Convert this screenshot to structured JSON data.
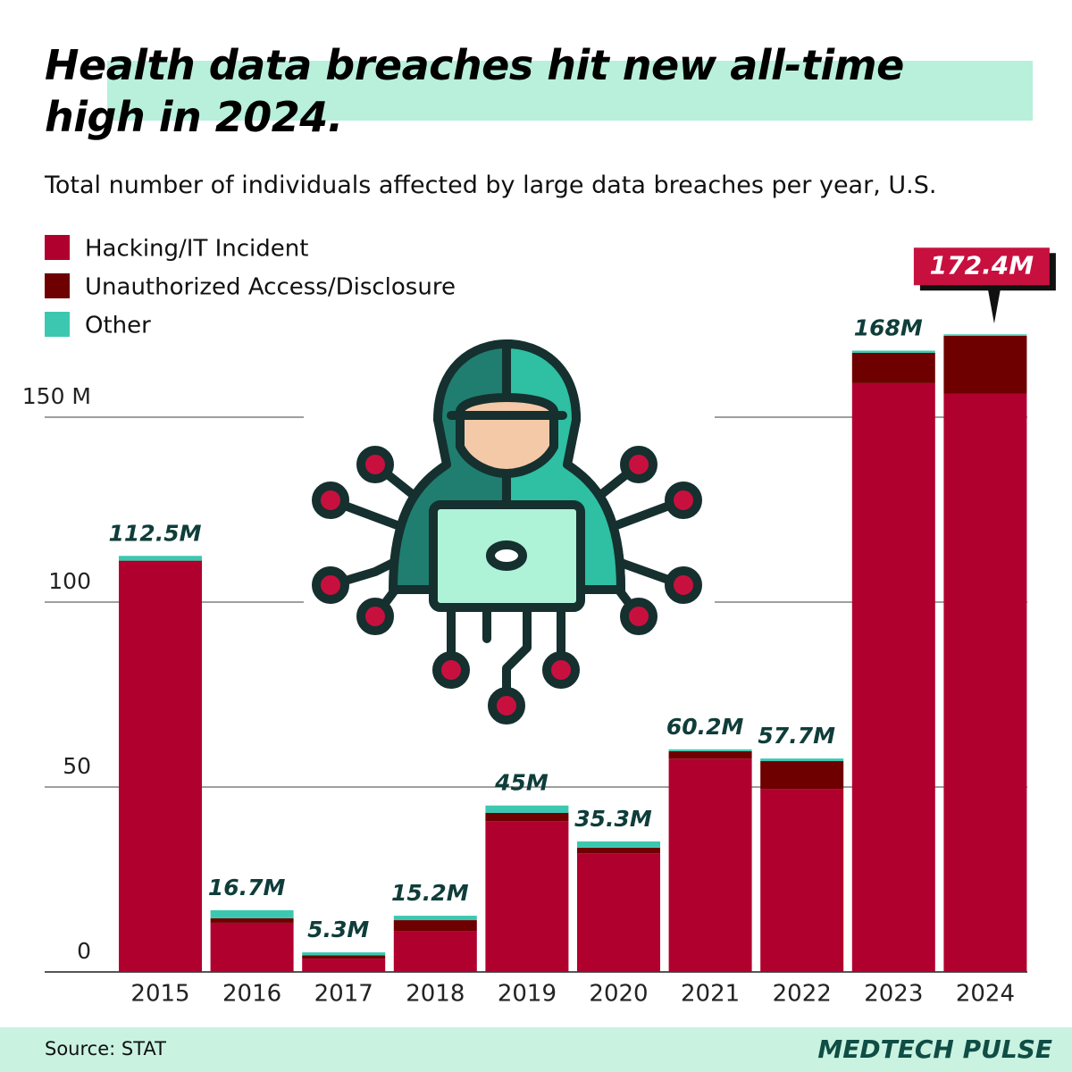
{
  "chart_data": {
    "type": "stacked_bar",
    "title": "Health data breaches hit new all-time high in 2024.",
    "subtitle": "Total number of individuals affected by large data breaches per year, U.S.",
    "categories": [
      "2015",
      "2016",
      "2017",
      "2018",
      "2019",
      "2020",
      "2021",
      "2022",
      "2023",
      "2024"
    ],
    "series": [
      {
        "name": "Hacking/IT Incident",
        "color": "#b0002e",
        "values": [
          110.9,
          13.3,
          3.6,
          11.1,
          40.8,
          32.1,
          57.7,
          49.5,
          159.2,
          156.3
        ]
      },
      {
        "name": "Unauthorized Access/Disclosure",
        "color": "#6e0000",
        "values": [
          0.3,
          1.2,
          0.9,
          2.9,
          2.2,
          1.5,
          2.0,
          7.5,
          8.2,
          15.7
        ]
      },
      {
        "name": "Other",
        "color": "#3cc8b0",
        "values": [
          1.3,
          2.2,
          0.8,
          1.2,
          2.0,
          1.7,
          0.5,
          0.7,
          0.6,
          0.4
        ]
      }
    ],
    "totals": {
      "values": [
        112.5,
        16.7,
        5.3,
        15.2,
        45,
        35.3,
        60.2,
        57.7,
        168,
        172.4
      ],
      "value_labels": [
        "112.5M",
        "16.7M",
        "5.3M",
        "15.2M",
        "45M",
        "35.3M",
        "60.2M",
        "57.7M",
        "168M",
        "172.4M"
      ],
      "highlight_color": "#c8103f"
    },
    "ylim": [
      0,
      180
    ],
    "yticks": [
      0,
      50,
      100,
      {
        "value": 150,
        "label": "150 M"
      }
    ],
    "grid": true,
    "source": "Source: STAT",
    "brand": "MEDTECH PULSE"
  }
}
